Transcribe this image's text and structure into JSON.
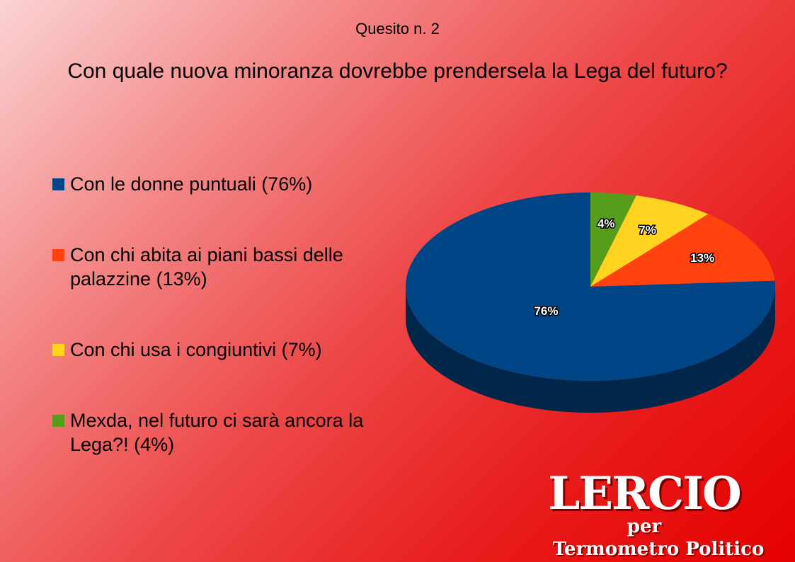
{
  "chart_data": {
    "type": "pie",
    "subtitle": "Quesito n. 2",
    "title": "Con quale nuova minoranza dovrebbe prendersela la Lega del futuro?",
    "categories": [
      "Con le donne puntuali (76%)",
      "Con chi abita ai piani bassi delle palazzine (13%)",
      "Con chi usa i congiuntivi (7%)",
      "Mexda, nel futuro ci sarà ancora la Lega?! (4%)"
    ],
    "values": [
      76,
      13,
      7,
      4
    ],
    "data_labels": [
      "76%",
      "13%",
      "7%",
      "4%"
    ],
    "colors": [
      "#004586",
      "#ff420e",
      "#ffd320",
      "#579d1c"
    ],
    "legend_position": "left"
  },
  "logo": {
    "main": "LERCIO",
    "per": "per",
    "sub": "Termometro Politico"
  }
}
